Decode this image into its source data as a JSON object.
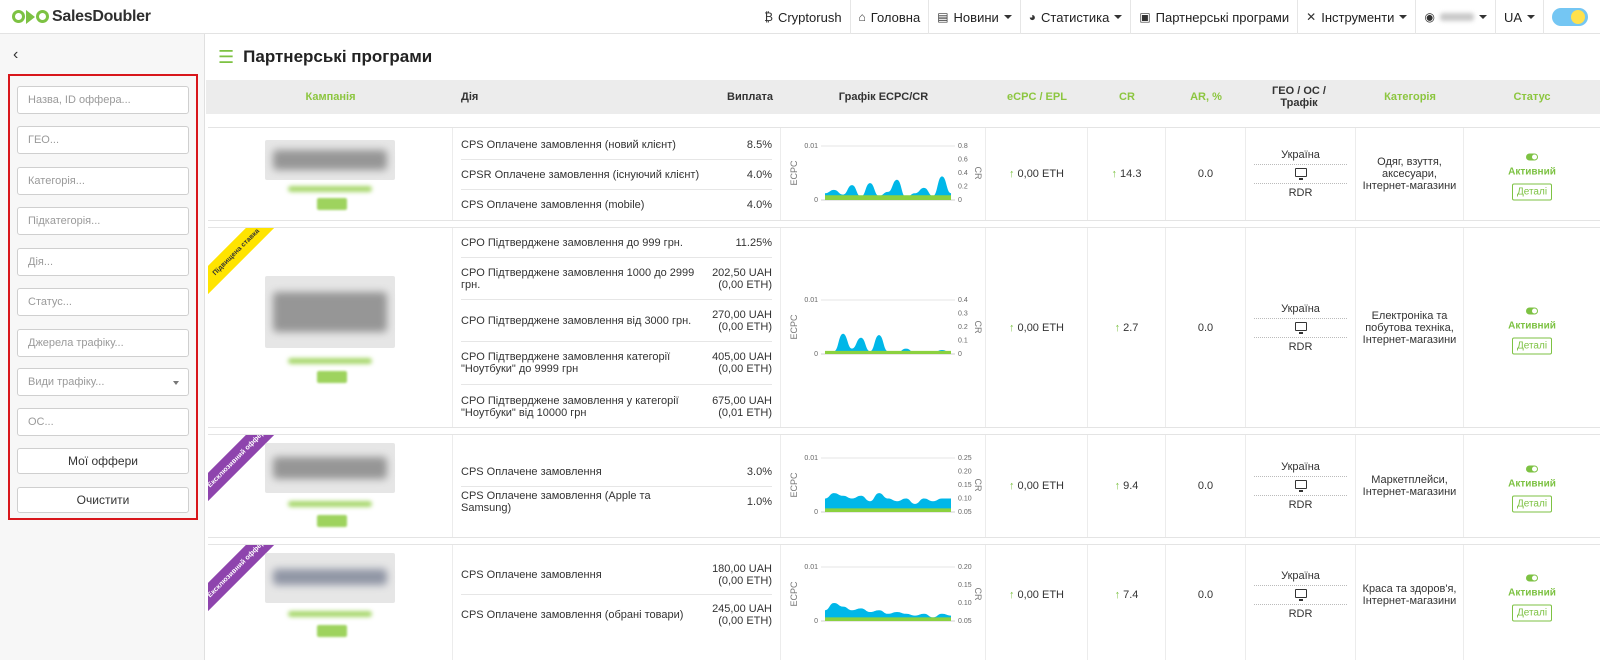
{
  "brand": {
    "name": "SalesDoubler"
  },
  "nav": {
    "cryptorush": "Cryptorush",
    "home": "Головна",
    "news": "Новини",
    "stats": "Статистика",
    "programs": "Партнерські програми",
    "tools": "Інструменти",
    "lang": "UA"
  },
  "sidebar": {
    "filters": [
      {
        "placeholder": "Назва, ID оффера..."
      },
      {
        "placeholder": "ГЕО..."
      },
      {
        "placeholder": "Категорія..."
      },
      {
        "placeholder": "Підкатегорія..."
      },
      {
        "placeholder": "Дія..."
      },
      {
        "placeholder": "Статус..."
      },
      {
        "placeholder": "Джерела трафіку..."
      },
      {
        "placeholder": "Види трафіку..."
      },
      {
        "placeholder": "ОС..."
      }
    ],
    "my_offers": "Мої оффери",
    "clear": "Очистити"
  },
  "page": {
    "title": "Партнерські програми"
  },
  "table": {
    "headers": {
      "campaign": "Кампанія",
      "action": "Дія",
      "payout": "Виплата",
      "graph": "Графік ECPC/CR",
      "ecpc": "eCPC / EPL",
      "cr": "CR",
      "ar": "AR, %",
      "geo": "ГЕО / ОС / Трафік",
      "category": "Категорія",
      "status": "Статус"
    },
    "chart_axis": {
      "left": "ECPC",
      "right": "CR"
    },
    "rows": [
      {
        "ribbon": "",
        "actions": [
          {
            "name": "CPS Оплачене замовлення (новий клієнт)",
            "pay": "8.5%"
          },
          {
            "name": "CPSR Оплачене замовлення (існуючий клієнт)",
            "pay": "4.0%"
          },
          {
            "name": "CPS Оплачене замовлення (mobile)",
            "pay": "4.0%"
          }
        ],
        "ecpc": "0,00 ETH",
        "cr": "14.3",
        "ar": "0.0",
        "geo": "Україна",
        "traffic": "RDR",
        "category": "Одяг, взуття, аксесуари, Інтернет-магазини",
        "status": "Активний",
        "details": "Деталі"
      },
      {
        "ribbon": "Підвищена ставка",
        "actions": [
          {
            "name": "CPO Підтверджене замовлення до 999 грн.",
            "pay": "11.25%"
          },
          {
            "name": "CPO Підтверджене замовлення 1000 до 2999 грн.",
            "pay": "202,50 UAH\n(0,00 ETH)"
          },
          {
            "name": "CPO Підтверджене замовлення від 3000 грн.",
            "pay": "270,00 UAH\n(0,00 ETH)"
          },
          {
            "name": "CPO Підтверджене замовлення категорії \"Ноутбуки\" до 9999 грн",
            "pay": "405,00 UAH\n(0,00 ETH)"
          },
          {
            "name": "CPO Підтверджене замовлення у категорії \"Ноутбуки\" від 10000 грн",
            "pay": "675,00 UAH\n(0,01 ETH)"
          }
        ],
        "ecpc": "0,00 ETH",
        "cr": "2.7",
        "ar": "0.0",
        "geo": "Україна",
        "traffic": "RDR",
        "category": "Електроніка та побутова техніка, Інтернет-магазини",
        "status": "Активний",
        "details": "Деталі"
      },
      {
        "ribbon": "Ексклюзивний оффер",
        "actions": [
          {
            "name": "CPS Оплачене замовлення",
            "pay": "3.0%"
          },
          {
            "name": "CPS Оплачене замовлення (Apple та Samsung)",
            "pay": "1.0%"
          }
        ],
        "ecpc": "0,00 ETH",
        "cr": "9.4",
        "ar": "0.0",
        "geo": "Україна",
        "traffic": "RDR",
        "category": "Маркетплейси, Інтернет-магазини",
        "status": "Активний",
        "details": "Деталі"
      },
      {
        "ribbon": "Ексклюзивний оффер",
        "actions": [
          {
            "name": "CPS Оплачене замовлення",
            "pay": "180,00 UAH\n(0,00 ETH)"
          },
          {
            "name": "CPS Оплачене замовлення (обрані товари)",
            "pay": "245,00 UAH\n(0,00 ETH)"
          }
        ],
        "ecpc": "0,00 ETH",
        "cr": "7.4",
        "ar": "0.0",
        "geo": "Україна",
        "traffic": "RDR",
        "category": "Краса та здоров'я, Інтернет-магазини",
        "status": "Активний",
        "details": "Деталі"
      }
    ]
  },
  "chart_data": [
    {
      "type": "area",
      "ylabel": "ECPC",
      "y2label": "CR",
      "ylim": [
        0,
        0.01
      ],
      "y2lim": [
        0,
        0.8
      ],
      "yticks": [
        "0.01",
        "0"
      ],
      "y2ticks": [
        "0.8",
        "0.6",
        "0.4",
        "0.2",
        "0"
      ],
      "cr": [
        0.1,
        0.15,
        0.08,
        0.22,
        0.05,
        0.25,
        0.06,
        0.12,
        0.3,
        0.04,
        0.1,
        0.18,
        0.06,
        0.35,
        0.1
      ],
      "ecpc": [
        0.0005,
        0.0005,
        0.0005,
        0.0005,
        0.0005,
        0.0005,
        0.0005,
        0.0005,
        0.0005,
        0.0005,
        0.0005,
        0.0005,
        0.0005,
        0.0005,
        0.0005
      ]
    },
    {
      "type": "area",
      "ylabel": "ECPC",
      "y2label": "CR",
      "ylim": [
        0,
        0.01
      ],
      "y2lim": [
        0,
        0.4
      ],
      "yticks": [
        "0.01",
        "0"
      ],
      "y2ticks": [
        "0.4",
        "0.3",
        "0.2",
        "0.1",
        "0"
      ],
      "cr": [
        0,
        0.02,
        0.15,
        0.04,
        0.12,
        0.02,
        0.14,
        0.02,
        0.01,
        0.04,
        0.01,
        0.02,
        0.01,
        0.03,
        0.01
      ],
      "ecpc": [
        0.0002,
        0.0002,
        0.0002,
        0.0002,
        0.0002,
        0.0002,
        0.0002,
        0.0002,
        0.0002,
        0.0002,
        0.0002,
        0.0002,
        0.0002,
        0.0002,
        0.0002
      ]
    },
    {
      "type": "area",
      "ylabel": "ECPC",
      "y2label": "CR",
      "ylim": [
        0,
        0.01
      ],
      "y2lim": [
        0.05,
        0.25
      ],
      "yticks": [
        "0.01",
        "0"
      ],
      "y2ticks": [
        "0.25",
        "0.20",
        "0.15",
        "0.10",
        "0.05"
      ],
      "cr": [
        0.1,
        0.12,
        0.11,
        0.1,
        0.11,
        0.09,
        0.12,
        0.1,
        0.09,
        0.1,
        0.08,
        0.1,
        0.09,
        0.1,
        0.1
      ],
      "ecpc": [
        0.0003,
        0.0003,
        0.0003,
        0.0003,
        0.0003,
        0.0003,
        0.0003,
        0.0003,
        0.0003,
        0.0003,
        0.0003,
        0.0003,
        0.0003,
        0.0003,
        0.0003
      ]
    },
    {
      "type": "area",
      "ylabel": "ECPC",
      "y2label": "CR",
      "ylim": [
        0,
        0.01
      ],
      "y2lim": [
        0.05,
        0.2
      ],
      "yticks": [
        "0.01",
        "0"
      ],
      "y2ticks": [
        "0.20",
        "0.15",
        "0.10",
        "0.05"
      ],
      "cr": [
        0.08,
        0.1,
        0.09,
        0.08,
        0.085,
        0.075,
        0.08,
        0.07,
        0.075,
        0.07,
        0.065,
        0.07,
        0.06,
        0.07,
        0.065
      ],
      "ecpc": [
        0.0003,
        0.0003,
        0.0003,
        0.0003,
        0.0003,
        0.0003,
        0.0003,
        0.0003,
        0.0003,
        0.0003,
        0.0003,
        0.0003,
        0.0003,
        0.0003,
        0.0003
      ]
    }
  ],
  "colors": {
    "accent": "#7dc243",
    "cr_area": "#00b7e8",
    "ecpc_area": "#8bd13f",
    "highlight_border": "#d8161b"
  },
  "icons": {
    "cryptorush": "bitcoin-icon",
    "home": "home-icon",
    "news": "newspaper-icon",
    "stats": "pie-chart-icon",
    "programs": "briefcase-icon",
    "tools": "tools-icon",
    "user": "user-icon",
    "page": "sliders-icon"
  }
}
